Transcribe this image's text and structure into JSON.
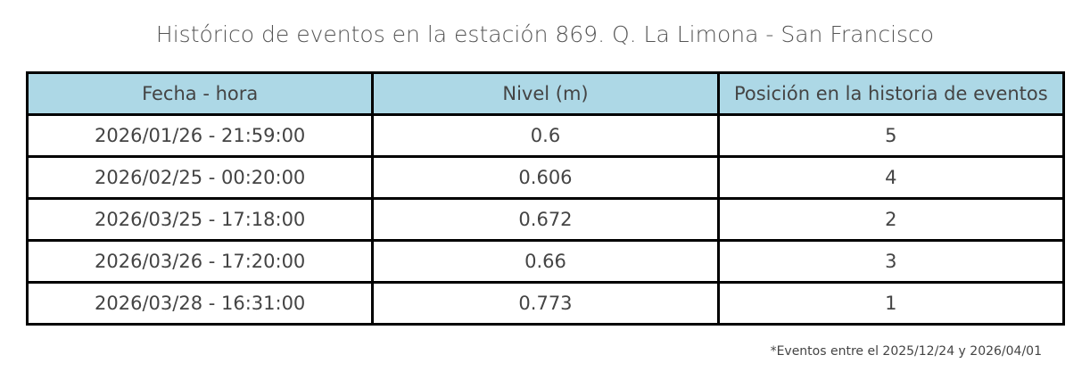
{
  "title": "Histórico de eventos en la estación 869. Q. La Limona - San Francisco",
  "table": {
    "header": [
      "Fecha - hora",
      "Nivel (m)",
      "Posición en la historia de eventos"
    ],
    "rows": [
      [
        "2026/01/26 - 21:59:00",
        "0.6",
        "5"
      ],
      [
        "2026/02/25 - 00:20:00",
        "0.606",
        "4"
      ],
      [
        "2026/03/25 - 17:18:00",
        "0.672",
        "2"
      ],
      [
        "2026/03/26 - 17:20:00",
        "0.66",
        "3"
      ],
      [
        "2026/03/28 - 16:31:00",
        "0.773",
        "1"
      ]
    ]
  },
  "footnote": "*Eventos entre el 2025/12/24 y 2026/04/01"
}
